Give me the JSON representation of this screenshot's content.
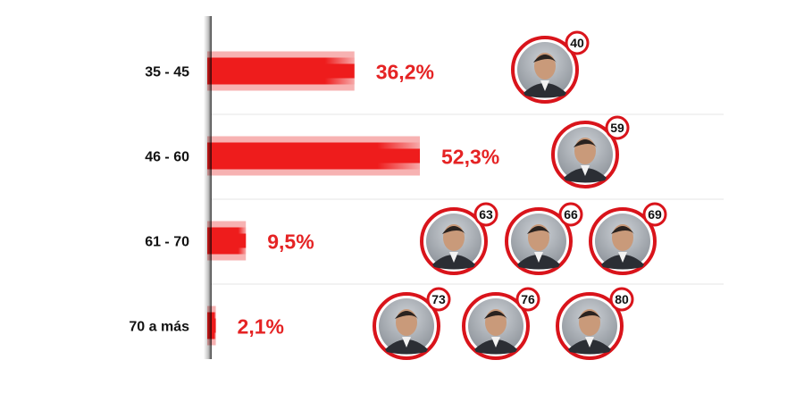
{
  "colors": {
    "bar": "#ee1c1c",
    "bar_light": "#f7b2b2",
    "label_red": "#e52324",
    "ring": "#d9141b",
    "divider": "#e6e6e6",
    "axis": "#2a2a2a"
  },
  "chart_data": {
    "type": "bar",
    "orientation": "horizontal",
    "categories": [
      "35 - 45",
      "46 - 60",
      "61 - 70",
      "70 a más"
    ],
    "values": [
      36.2,
      52.3,
      9.5,
      2.1
    ],
    "value_labels": [
      "36,2%",
      "52,3%",
      "9,5%",
      "2,1%"
    ],
    "xlim": [
      0,
      55
    ],
    "grid": false,
    "groups": [
      {
        "ages": [
          "40"
        ]
      },
      {
        "ages": [
          "59"
        ]
      },
      {
        "ages": [
          "63",
          "66",
          "69"
        ]
      },
      {
        "ages": [
          "73",
          "76",
          "80"
        ]
      }
    ]
  }
}
